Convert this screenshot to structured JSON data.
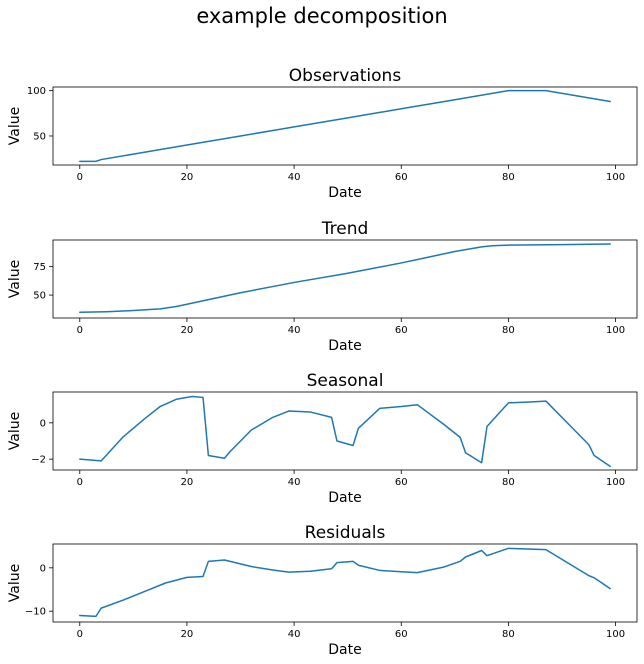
{
  "figure": {
    "title": "example decomposition",
    "line_color": "#1f77b4"
  },
  "chart_data": [
    {
      "type": "line",
      "title": "Observations",
      "xlabel": "Date",
      "ylabel": "Value",
      "xlim": [
        -5,
        104
      ],
      "ylim": [
        18,
        104
      ],
      "xticks": [
        0,
        20,
        40,
        60,
        80,
        100
      ],
      "yticks": [
        50,
        100
      ],
      "grid": false,
      "series": [
        {
          "x": [
            0,
            3,
            4,
            10,
            20,
            30,
            40,
            50,
            60,
            70,
            80,
            87,
            99
          ],
          "y": [
            22,
            22,
            24,
            30,
            40,
            50,
            60,
            70,
            80,
            90,
            100,
            100,
            88
          ]
        }
      ]
    },
    {
      "type": "line",
      "title": "Trend",
      "xlabel": "Date",
      "ylabel": "Value",
      "xlim": [
        -5,
        104
      ],
      "ylim": [
        30,
        98
      ],
      "xticks": [
        0,
        20,
        40,
        60,
        80,
        100
      ],
      "yticks": [
        50,
        75
      ],
      "grid": false,
      "series": [
        {
          "x": [
            0,
            5,
            10,
            15,
            18,
            20,
            25,
            30,
            40,
            50,
            60,
            65,
            70,
            75,
            77,
            80,
            90,
            99
          ],
          "y": [
            35,
            35.5,
            36.5,
            38,
            40,
            42,
            47,
            52,
            61,
            69,
            78,
            83,
            88,
            92,
            93,
            93.5,
            94,
            94.5
          ]
        }
      ]
    },
    {
      "type": "line",
      "title": "Seasonal",
      "xlabel": "Date",
      "ylabel": "Value",
      "xlim": [
        -5,
        104
      ],
      "ylim": [
        -2.6,
        1.7
      ],
      "xticks": [
        0,
        20,
        40,
        60,
        80,
        100
      ],
      "yticks": [
        -2,
        0
      ],
      "grid": false,
      "series": [
        {
          "x": [
            0,
            4,
            8,
            12,
            15,
            18,
            21,
            23,
            24,
            27,
            28,
            32,
            36,
            39,
            43,
            47,
            48,
            51,
            52,
            56,
            60,
            63,
            68,
            71,
            72,
            75,
            76,
            80,
            84,
            87,
            91,
            95,
            96,
            99
          ],
          "y": [
            -2.0,
            -2.1,
            -0.8,
            0.2,
            0.9,
            1.3,
            1.45,
            1.4,
            -1.8,
            -1.95,
            -1.6,
            -0.4,
            0.3,
            0.65,
            0.6,
            0.3,
            -1.0,
            -1.25,
            -0.3,
            0.8,
            0.9,
            1.0,
            -0.1,
            -0.8,
            -1.65,
            -2.2,
            -0.2,
            1.1,
            1.15,
            1.2,
            0.0,
            -1.2,
            -1.8,
            -2.4
          ]
        }
      ]
    },
    {
      "type": "line",
      "title": "Residuals",
      "xlabel": "Date",
      "ylabel": "Value",
      "xlim": [
        -5,
        104
      ],
      "ylim": [
        -12.5,
        5.5
      ],
      "xticks": [
        0,
        20,
        40,
        60,
        80,
        100
      ],
      "yticks": [
        -10,
        0
      ],
      "grid": false,
      "series": [
        {
          "x": [
            0,
            3,
            4,
            8,
            12,
            16,
            20,
            23,
            24,
            27,
            32,
            36,
            39,
            43,
            47,
            48,
            51,
            52,
            56,
            60,
            63,
            68,
            71,
            72,
            75,
            76,
            80,
            87,
            95,
            96,
            99
          ],
          "y": [
            -11,
            -11.2,
            -9.3,
            -7.5,
            -5.5,
            -3.5,
            -2.2,
            -2,
            1.5,
            1.8,
            0.3,
            -0.5,
            -1,
            -0.8,
            -0.2,
            1.2,
            1.5,
            0.6,
            -0.6,
            -0.9,
            -1.1,
            0.2,
            1.5,
            2.5,
            4,
            2.8,
            4.5,
            4.2,
            -1.8,
            -2.3,
            -4.8
          ]
        }
      ]
    }
  ]
}
